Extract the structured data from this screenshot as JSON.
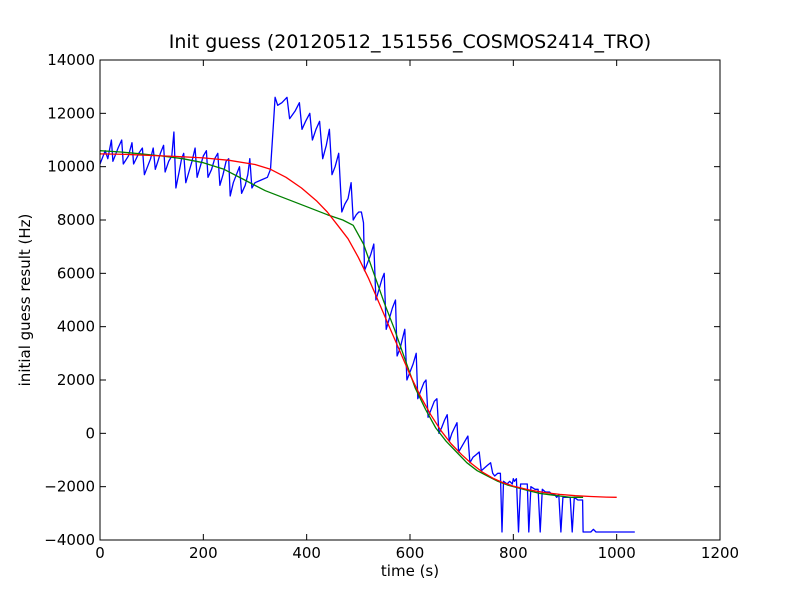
{
  "chart_data": {
    "type": "line",
    "title": "Init guess (20120512_151556_COSMOS2414_TRO)",
    "xlabel": "time (s)",
    "ylabel": "initial guess result (Hz)",
    "xlim": [
      0,
      1200
    ],
    "ylim": [
      -4000,
      14000
    ],
    "xticks": [
      0,
      200,
      400,
      600,
      800,
      1000,
      1200
    ],
    "yticks": [
      -4000,
      -2000,
      0,
      2000,
      4000,
      6000,
      8000,
      10000,
      12000,
      14000
    ],
    "grid": false,
    "legend": "none",
    "series": [
      {
        "color": "#0000ff",
        "points": [
          [
            0,
            10100
          ],
          [
            10,
            10600
          ],
          [
            15,
            10300
          ],
          [
            22,
            11000
          ],
          [
            25,
            10200
          ],
          [
            35,
            10700
          ],
          [
            42,
            11000
          ],
          [
            45,
            10100
          ],
          [
            55,
            10400
          ],
          [
            62,
            10900
          ],
          [
            65,
            10100
          ],
          [
            75,
            10500
          ],
          [
            82,
            10700
          ],
          [
            86,
            9700
          ],
          [
            92,
            10000
          ],
          [
            98,
            10300
          ],
          [
            103,
            10700
          ],
          [
            107,
            9900
          ],
          [
            112,
            10200
          ],
          [
            117,
            10500
          ],
          [
            123,
            10800
          ],
          [
            126,
            9800
          ],
          [
            133,
            10200
          ],
          [
            139,
            10400
          ],
          [
            143,
            11300
          ],
          [
            147,
            9200
          ],
          [
            153,
            9800
          ],
          [
            158,
            10300
          ],
          [
            162,
            10500
          ],
          [
            166,
            9400
          ],
          [
            172,
            9800
          ],
          [
            178,
            10200
          ],
          [
            184,
            10700
          ],
          [
            188,
            9600
          ],
          [
            194,
            10000
          ],
          [
            200,
            10400
          ],
          [
            206,
            10600
          ],
          [
            209,
            9600
          ],
          [
            216,
            9900
          ],
          [
            222,
            10300
          ],
          [
            228,
            10500
          ],
          [
            232,
            9300
          ],
          [
            238,
            9700
          ],
          [
            244,
            10200
          ],
          [
            249,
            10300
          ],
          [
            252,
            8900
          ],
          [
            258,
            9400
          ],
          [
            264,
            9700
          ],
          [
            270,
            10000
          ],
          [
            274,
            9000
          ],
          [
            281,
            9300
          ],
          [
            286,
            9700
          ],
          [
            290,
            10300
          ],
          [
            294,
            9200
          ],
          [
            300,
            9400
          ],
          [
            312,
            9500
          ],
          [
            324,
            9600
          ],
          [
            330,
            9900
          ],
          [
            336,
            11700
          ],
          [
            339,
            12600
          ],
          [
            344,
            12300
          ],
          [
            352,
            12400
          ],
          [
            362,
            12600
          ],
          [
            367,
            11800
          ],
          [
            378,
            12100
          ],
          [
            386,
            12400
          ],
          [
            391,
            11400
          ],
          [
            398,
            11700
          ],
          [
            406,
            12000
          ],
          [
            411,
            11000
          ],
          [
            418,
            11400
          ],
          [
            425,
            11700
          ],
          [
            431,
            10300
          ],
          [
            438,
            10800
          ],
          [
            444,
            11400
          ],
          [
            449,
            9700
          ],
          [
            455,
            10000
          ],
          [
            462,
            10500
          ],
          [
            468,
            8300
          ],
          [
            474,
            8600
          ],
          [
            480,
            8800
          ],
          [
            486,
            9400
          ],
          [
            490,
            8000
          ],
          [
            496,
            8200
          ],
          [
            501,
            8300
          ],
          [
            506,
            8300
          ],
          [
            510,
            7900
          ],
          [
            512,
            6100
          ],
          [
            518,
            6400
          ],
          [
            524,
            6700
          ],
          [
            530,
            7100
          ],
          [
            534,
            5000
          ],
          [
            540,
            5400
          ],
          [
            546,
            5800
          ],
          [
            550,
            6000
          ],
          [
            554,
            3900
          ],
          [
            560,
            4300
          ],
          [
            566,
            4700
          ],
          [
            572,
            5000
          ],
          [
            575,
            2900
          ],
          [
            581,
            3200
          ],
          [
            586,
            3600
          ],
          [
            590,
            3900
          ],
          [
            594,
            2000
          ],
          [
            600,
            2300
          ],
          [
            606,
            2600
          ],
          [
            612,
            3000
          ],
          [
            615,
            1300
          ],
          [
            621,
            1600
          ],
          [
            627,
            1900
          ],
          [
            631,
            2000
          ],
          [
            635,
            600
          ],
          [
            641,
            900
          ],
          [
            647,
            1200
          ],
          [
            652,
            1300
          ],
          [
            656,
            0
          ],
          [
            661,
            200
          ],
          [
            667,
            500
          ],
          [
            672,
            700
          ],
          [
            676,
            -300
          ],
          [
            681,
            0
          ],
          [
            686,
            200
          ],
          [
            691,
            400
          ],
          [
            694,
            -700
          ],
          [
            700,
            -500
          ],
          [
            706,
            -300
          ],
          [
            712,
            -100
          ],
          [
            716,
            -1100
          ],
          [
            722,
            -900
          ],
          [
            728,
            -800
          ],
          [
            734,
            -700
          ],
          [
            738,
            -1400
          ],
          [
            744,
            -1300
          ],
          [
            750,
            -1200
          ],
          [
            756,
            -1100
          ],
          [
            760,
            -1500
          ],
          [
            764,
            -1600
          ],
          [
            770,
            -1500
          ],
          [
            775,
            -1500
          ],
          [
            778,
            -3700
          ],
          [
            781,
            -1800
          ],
          [
            788,
            -1900
          ],
          [
            793,
            -1800
          ],
          [
            798,
            -1900
          ],
          [
            800,
            -1700
          ],
          [
            802,
            -1800
          ],
          [
            806,
            -1700
          ],
          [
            810,
            -3700
          ],
          [
            814,
            -1900
          ],
          [
            820,
            -1900
          ],
          [
            827,
            -1900
          ],
          [
            830,
            -3700
          ],
          [
            834,
            -2000
          ],
          [
            842,
            -2100
          ],
          [
            848,
            -2100
          ],
          [
            852,
            -3700
          ],
          [
            856,
            -2100
          ],
          [
            862,
            -2200
          ],
          [
            870,
            -2200
          ],
          [
            875,
            -2300
          ],
          [
            880,
            -2300
          ],
          [
            884,
            -2400
          ],
          [
            888,
            -2300
          ],
          [
            892,
            -3700
          ],
          [
            896,
            -2400
          ],
          [
            904,
            -2400
          ],
          [
            910,
            -2400
          ],
          [
            914,
            -3700
          ],
          [
            918,
            -2400
          ],
          [
            925,
            -2500
          ],
          [
            930,
            -2500
          ],
          [
            934,
            -2500
          ],
          [
            935,
            -3700
          ],
          [
            945,
            -3700
          ],
          [
            950,
            -3700
          ],
          [
            955,
            -3600
          ],
          [
            960,
            -3700
          ],
          [
            1035,
            -3700
          ]
        ]
      },
      {
        "color": "#008000",
        "points": [
          [
            0,
            10600
          ],
          [
            40,
            10550
          ],
          [
            80,
            10480
          ],
          [
            120,
            10400
          ],
          [
            160,
            10300
          ],
          [
            200,
            10150
          ],
          [
            240,
            9900
          ],
          [
            280,
            9500
          ],
          [
            320,
            9100
          ],
          [
            360,
            8800
          ],
          [
            400,
            8500
          ],
          [
            440,
            8200
          ],
          [
            470,
            8000
          ],
          [
            490,
            7800
          ],
          [
            510,
            7100
          ],
          [
            530,
            6000
          ],
          [
            550,
            4900
          ],
          [
            570,
            3900
          ],
          [
            590,
            2800
          ],
          [
            610,
            1700
          ],
          [
            630,
            900
          ],
          [
            650,
            200
          ],
          [
            670,
            -300
          ],
          [
            690,
            -700
          ],
          [
            710,
            -1100
          ],
          [
            730,
            -1400
          ],
          [
            750,
            -1600
          ],
          [
            770,
            -1800
          ],
          [
            790,
            -1950
          ],
          [
            810,
            -2050
          ],
          [
            830,
            -2150
          ],
          [
            850,
            -2250
          ],
          [
            870,
            -2300
          ],
          [
            890,
            -2350
          ],
          [
            910,
            -2400
          ],
          [
            935,
            -2400
          ]
        ]
      },
      {
        "color": "#ff0000",
        "points": [
          [
            0,
            10480
          ],
          [
            50,
            10460
          ],
          [
            100,
            10420
          ],
          [
            150,
            10380
          ],
          [
            200,
            10330
          ],
          [
            250,
            10240
          ],
          [
            300,
            10080
          ],
          [
            330,
            9900
          ],
          [
            360,
            9600
          ],
          [
            390,
            9200
          ],
          [
            420,
            8700
          ],
          [
            440,
            8300
          ],
          [
            460,
            7800
          ],
          [
            480,
            7300
          ],
          [
            500,
            6600
          ],
          [
            520,
            5800
          ],
          [
            540,
            4900
          ],
          [
            560,
            4000
          ],
          [
            580,
            3100
          ],
          [
            600,
            2200
          ],
          [
            620,
            1400
          ],
          [
            640,
            700
          ],
          [
            660,
            100
          ],
          [
            680,
            -400
          ],
          [
            700,
            -800
          ],
          [
            720,
            -1150
          ],
          [
            740,
            -1450
          ],
          [
            760,
            -1680
          ],
          [
            780,
            -1850
          ],
          [
            800,
            -1980
          ],
          [
            830,
            -2120
          ],
          [
            860,
            -2220
          ],
          [
            890,
            -2290
          ],
          [
            920,
            -2340
          ],
          [
            950,
            -2370
          ],
          [
            980,
            -2390
          ],
          [
            1000,
            -2400
          ]
        ]
      }
    ]
  }
}
